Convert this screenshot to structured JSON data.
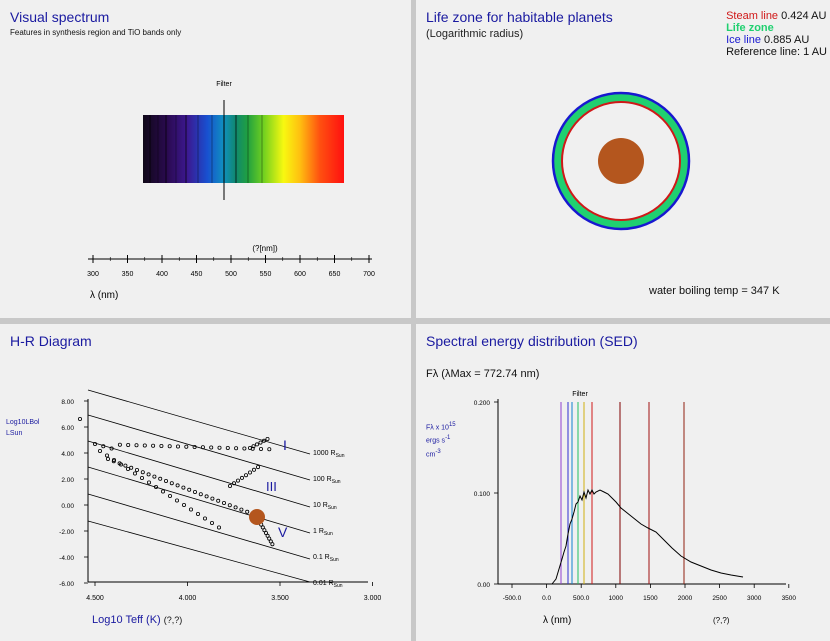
{
  "spectrum": {
    "title": "Visual spectrum",
    "subtitle": "Features in synthesis region and TiO bands only",
    "filter_label": "Filter",
    "unit_label": "(?[nm])",
    "ticks": [
      "300",
      "350",
      "400",
      "450",
      "500",
      "550",
      "600",
      "650",
      "700"
    ],
    "xlabel": "λ (nm)"
  },
  "life": {
    "title": "Life zone for habitable planets",
    "subtitle": "(Logarithmic radius)",
    "steam_label": "Steam line",
    "steam_value": "0.424 AU",
    "life_label": "Life zone",
    "ice_label": "Ice line",
    "ice_value": "0.885 AU",
    "ref_label": "Reference line:",
    "ref_value": "1 AU",
    "water_temp": "water boiling temp = 347 K",
    "colors": {
      "steam": "#d01818",
      "life": "#20d070",
      "ice": "#1818d0",
      "planet": "#b4561e"
    }
  },
  "hr": {
    "title": "H-R Diagram",
    "y_label_main": "Log10LBol",
    "y_label_sub": "LSun",
    "y_ticks": [
      "8.00",
      "6.00",
      "4.00",
      "2.00",
      "0.00",
      "-2.00",
      "-4.00",
      "-6.00"
    ],
    "x_ticks": [
      "4.500",
      "4.000",
      "3.500",
      "3.000"
    ],
    "radius_labels": [
      "1000 RSun",
      "100 RSun",
      "10 RSun",
      "1 RSun",
      "0.1 RSun",
      "0.01 RSun"
    ],
    "class_labels": [
      "I",
      "III",
      "V"
    ],
    "x_label": "Log10 Teff (K)",
    "x_unit": "(?,?)"
  },
  "sed": {
    "title": "Spectral energy distribution (SED)",
    "f_lambda": "Fλ (λMax = 772.74 nm)",
    "filter_label": "Filter",
    "y_label_1": "Fλ x 10",
    "y_label_exp": "15",
    "y_label_2": "ergs s",
    "y_label_3": "cm",
    "y_ticks": [
      "0.200",
      "0.100",
      "0.00"
    ],
    "x_ticks": [
      "-500.0",
      "0.0",
      "500.0",
      "1000",
      "1500",
      "2000",
      "2500",
      "3000",
      "3500"
    ],
    "x_label": "λ (nm)",
    "x_unit": "(?,?)"
  }
}
